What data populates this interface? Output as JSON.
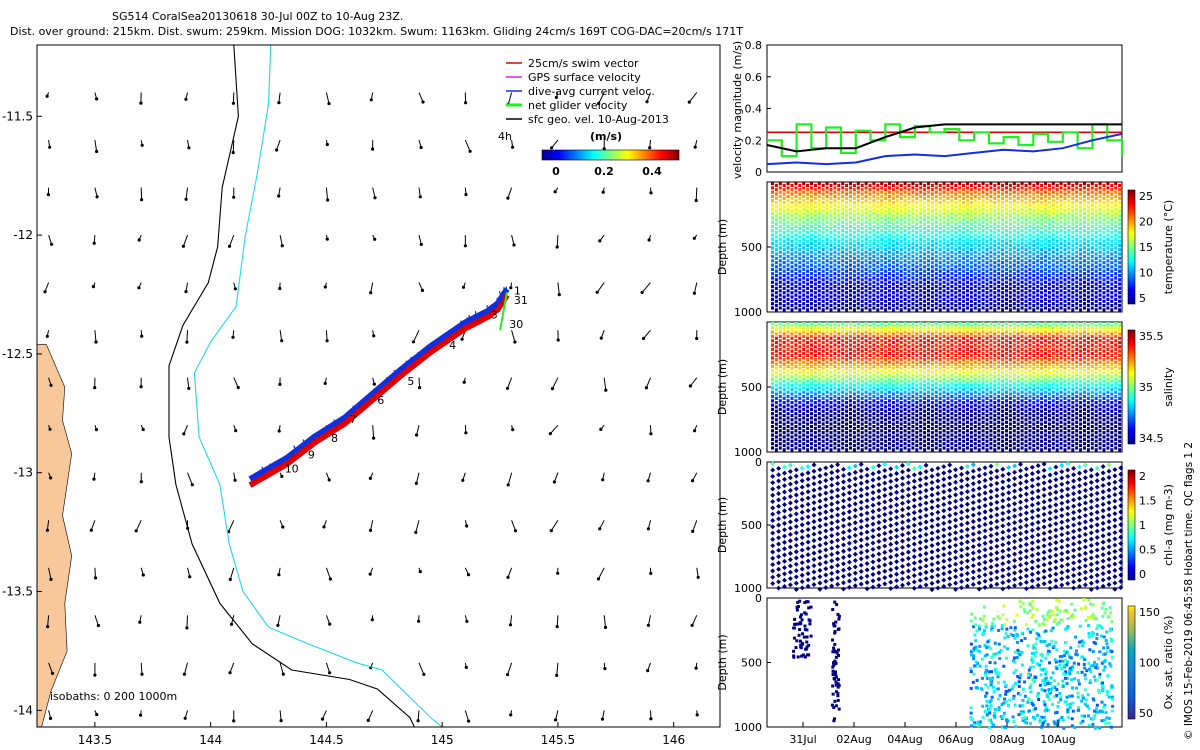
{
  "header": {
    "line1": "SG514 CoralSea20130618 30-Jul 00Z to 10-Aug 23Z.",
    "line2": "Dist. over ground: 215km. Dist. swum: 259km. Mission DOG: 1032km. Swum: 1163km. Gliding 24cm/s 169T COG-DAC=20cm/s 171T"
  },
  "credit": "© IMOS 15-Feb-2019 06:45:58 Hobart time. QC flags 1  2",
  "colors": {
    "land": "#f8c89a",
    "isobath_200": "#000000",
    "isobath_1000": "#22d8e8",
    "track_red": "#e00000",
    "track_blue": "#1030e0",
    "vel_red": "#e00000",
    "vel_green": "#22ee22",
    "vel_black": "#000000",
    "vel_blue": "#1030e0"
  },
  "chart_data": [
    {
      "id": "map",
      "type": "scatter",
      "title": "Glider track map with surface geostrophic velocity vectors",
      "xlim": [
        143.25,
        146.2
      ],
      "ylim": [
        -14.07,
        -11.2
      ],
      "xticks": [
        143.5,
        144,
        144.5,
        145,
        145.5,
        146
      ],
      "xtick_labels": [
        "143.5",
        "144",
        "144.5",
        "145",
        "145.5",
        "146"
      ],
      "yticks": [
        -11.5,
        -12,
        -12.5,
        -13,
        -13.5,
        -14
      ],
      "ytick_labels": [
        "-11.5",
        "-12",
        "-12.5",
        "-13",
        "-13.5",
        "-14"
      ],
      "legend": [
        {
          "label": "25cm/s swim vector",
          "color": "#e00000"
        },
        {
          "label": "GPS surface velocity",
          "color": "#dd22dd"
        },
        {
          "label": "dive-avg current veloc.",
          "color": "#1030e0"
        },
        {
          "label": "net glider velocity",
          "color": "#22ee22"
        },
        {
          "label": "sfc geo. vel. 10-Aug-2013",
          "color": "#000000"
        }
      ],
      "legend_extra": "4h",
      "colorbar": {
        "title": "(m/s)",
        "ticks": [
          "0",
          "0.2",
          "0.4"
        ],
        "range": [
          0,
          0.5
        ]
      },
      "isobath_label": "isobaths: 0   200  1000m",
      "track": [
        [
          145.28,
          -12.24
        ],
        [
          145.24,
          -12.3
        ],
        [
          145.2,
          -12.33
        ],
        [
          145.1,
          -12.38
        ],
        [
          144.95,
          -12.48
        ],
        [
          144.82,
          -12.58
        ],
        [
          144.7,
          -12.68
        ],
        [
          144.58,
          -12.78
        ],
        [
          144.45,
          -12.86
        ],
        [
          144.33,
          -12.95
        ],
        [
          144.17,
          -13.04
        ]
      ],
      "day_labels": [
        {
          "text": "1",
          "lon": 145.31,
          "lat": -12.25
        },
        {
          "text": "31",
          "lon": 145.31,
          "lat": -12.29
        },
        {
          "text": "30",
          "lon": 145.29,
          "lat": -12.39
        },
        {
          "text": "3",
          "lon": 145.21,
          "lat": -12.35
        },
        {
          "text": "4",
          "lon": 145.03,
          "lat": -12.48
        },
        {
          "text": "5",
          "lon": 144.85,
          "lat": -12.63
        },
        {
          "text": "6",
          "lon": 144.72,
          "lat": -12.71
        },
        {
          "text": "7",
          "lon": 144.6,
          "lat": -12.79
        },
        {
          "text": "8",
          "lon": 144.52,
          "lat": -12.87
        },
        {
          "text": "9",
          "lon": 144.42,
          "lat": -12.94
        },
        {
          "text": "10",
          "lon": 144.32,
          "lat": -13.0
        }
      ],
      "coast": [
        [
          143.25,
          -12.46
        ],
        [
          143.29,
          -12.46
        ],
        [
          143.33,
          -12.55
        ],
        [
          143.37,
          -12.64
        ],
        [
          143.36,
          -12.78
        ],
        [
          143.4,
          -12.92
        ],
        [
          143.38,
          -13.05
        ],
        [
          143.36,
          -13.18
        ],
        [
          143.4,
          -13.35
        ],
        [
          143.37,
          -13.55
        ],
        [
          143.38,
          -13.75
        ],
        [
          143.31,
          -13.92
        ],
        [
          143.27,
          -14.07
        ],
        [
          143.25,
          -14.07
        ]
      ],
      "isobath_200": [
        [
          144.1,
          -11.2
        ],
        [
          144.12,
          -11.5
        ],
        [
          144.05,
          -11.8
        ],
        [
          144.03,
          -12.05
        ],
        [
          143.99,
          -12.2
        ],
        [
          143.88,
          -12.38
        ],
        [
          143.82,
          -12.55
        ],
        [
          143.82,
          -12.85
        ],
        [
          143.85,
          -13.05
        ],
        [
          143.92,
          -13.3
        ],
        [
          144.04,
          -13.55
        ],
        [
          144.18,
          -13.72
        ],
        [
          144.35,
          -13.83
        ],
        [
          144.6,
          -13.87
        ],
        [
          144.72,
          -13.91
        ],
        [
          144.86,
          -14.03
        ],
        [
          144.88,
          -14.07
        ]
      ],
      "isobath_1000": [
        [
          144.26,
          -11.2
        ],
        [
          144.25,
          -11.45
        ],
        [
          144.2,
          -11.75
        ],
        [
          144.15,
          -12.0
        ],
        [
          144.11,
          -12.3
        ],
        [
          144.0,
          -12.45
        ],
        [
          143.93,
          -12.58
        ],
        [
          143.95,
          -12.85
        ],
        [
          144.04,
          -13.05
        ],
        [
          144.08,
          -13.3
        ],
        [
          144.14,
          -13.5
        ],
        [
          144.25,
          -13.65
        ],
        [
          144.42,
          -13.72
        ],
        [
          144.63,
          -13.8
        ],
        [
          144.74,
          -13.83
        ],
        [
          144.95,
          -14.03
        ],
        [
          145.0,
          -14.07
        ]
      ]
    },
    {
      "id": "velocity",
      "type": "line",
      "ylabel": "velocity magnitude (m/s)",
      "ylim": [
        0,
        0.8
      ],
      "yticks": [
        0,
        0.2,
        0.4,
        0.6,
        0.8
      ],
      "ytick_labels": [
        "0",
        "0.2",
        "0.4",
        "0.6",
        "0.8"
      ],
      "xlim": [
        0,
        12
      ],
      "reference_line": 0.25,
      "series": [
        {
          "name": "net glider velocity",
          "color": "#22ee22",
          "x": [
            0,
            0.5,
            1,
            1.5,
            2,
            2.5,
            3,
            3.5,
            4,
            4.5,
            5,
            5.5,
            6,
            6.5,
            7,
            7.5,
            8,
            8.5,
            9,
            9.5,
            10,
            10.5,
            11,
            11.5,
            12
          ],
          "values": [
            0.2,
            0.1,
            0.3,
            0.15,
            0.28,
            0.12,
            0.26,
            0.2,
            0.3,
            0.22,
            0.29,
            0.25,
            0.27,
            0.2,
            0.25,
            0.18,
            0.22,
            0.17,
            0.24,
            0.19,
            0.25,
            0.15,
            0.3,
            0.2,
            0.1
          ]
        },
        {
          "name": "dive-avg current veloc.",
          "color": "#1030e0",
          "x": [
            0,
            1,
            2,
            3,
            4,
            5,
            6,
            7,
            8,
            9,
            10,
            11,
            12
          ],
          "values": [
            0.05,
            0.06,
            0.05,
            0.06,
            0.1,
            0.11,
            0.1,
            0.12,
            0.14,
            0.13,
            0.15,
            0.2,
            0.24
          ]
        },
        {
          "name": "sfc geo. vel.",
          "color": "#000000",
          "x": [
            0,
            1,
            2,
            3,
            4,
            5,
            6,
            7,
            8,
            9,
            10,
            11,
            12
          ],
          "values": [
            0.17,
            0.13,
            0.15,
            0.15,
            0.22,
            0.28,
            0.3,
            0.3,
            0.3,
            0.3,
            0.3,
            0.3,
            0.3
          ]
        }
      ]
    },
    {
      "id": "temperature",
      "type": "heatmap",
      "ylabel": "Depth (m)",
      "ylim": [
        0,
        1000
      ],
      "yticks": [
        500,
        1000
      ],
      "ytick_labels": [
        "500",
        "1000"
      ],
      "colorbar_label": "temperature (°C)",
      "colorbar_ticks": [
        "25",
        "20",
        "15",
        "10",
        "5"
      ],
      "range": [
        3,
        28
      ]
    },
    {
      "id": "salinity",
      "type": "heatmap",
      "ylabel": "Depth (m)",
      "ylim": [
        0,
        1000
      ],
      "yticks": [
        500,
        1000
      ],
      "ytick_labels": [
        "500",
        "1000"
      ],
      "colorbar_label": "salinity",
      "colorbar_ticks": [
        "35.5",
        "35",
        "34.5"
      ],
      "range": [
        34.3,
        35.9
      ]
    },
    {
      "id": "chla",
      "type": "scatter",
      "ylabel": "Depth (m)",
      "ylim": [
        0,
        1000
      ],
      "yticks": [
        0,
        500,
        1000
      ],
      "ytick_labels": [
        "0",
        "500",
        "1000"
      ],
      "colorbar_label": "chl-a (mg m-3)",
      "colorbar_ticks": [
        "2",
        "1.5",
        "1",
        "0.5",
        "0"
      ],
      "range": [
        0,
        2
      ]
    },
    {
      "id": "oxygen",
      "type": "scatter",
      "ylabel": "Depth (m)",
      "ylim": [
        0,
        1000
      ],
      "yticks": [
        0,
        500,
        1000
      ],
      "ytick_labels": [
        "0",
        "500",
        "1000"
      ],
      "colorbar_label": "Ox. sat. ratio (%)",
      "colorbar_ticks": [
        "150",
        "100",
        "50"
      ],
      "range": [
        20,
        175
      ],
      "xtick_labels": [
        "31Jul",
        "02Aug",
        "04Aug",
        "06Aug",
        "08Aug",
        "10Aug"
      ]
    }
  ]
}
